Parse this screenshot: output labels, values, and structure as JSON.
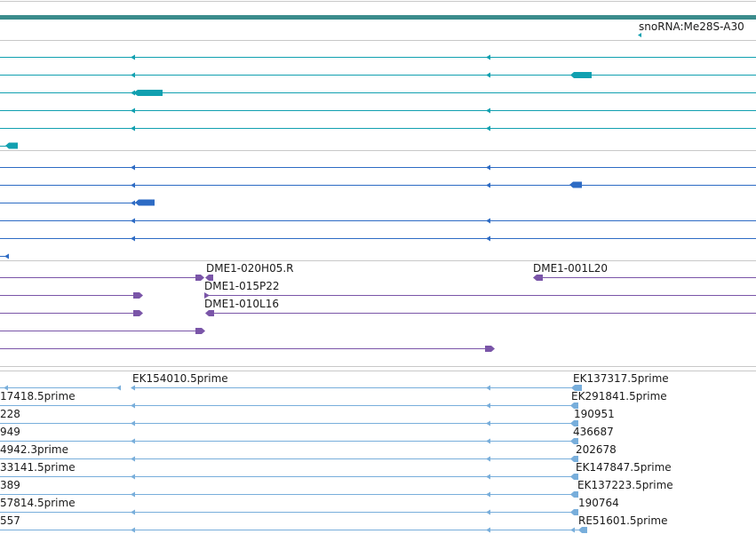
{
  "colors": {
    "top_bar": "#3b8c8c",
    "rna": "#11a0b0",
    "mrna": "#2d6bc4",
    "bac": "#7a55a8",
    "est": "#78aedb",
    "divider": "#c8c8c8",
    "text": "#1a1a1a"
  },
  "tracks": [
    {
      "name": "snoRNA",
      "features": [
        {
          "label": "snoRNA:Me28S-A30"
        }
      ]
    },
    {
      "name": "bac-ends",
      "features": [
        {
          "label": "DME1-020H05.R"
        },
        {
          "label": "DME1-001L20"
        },
        {
          "label": "DME1-015P22"
        },
        {
          "label": "DME1-010L16"
        }
      ]
    },
    {
      "name": "est-left",
      "features": [
        {
          "label": "17418.5prime"
        },
        {
          "label": "228"
        },
        {
          "label": "949"
        },
        {
          "label": "4942.3prime"
        },
        {
          "label": "33141.5prime"
        },
        {
          "label": "389"
        },
        {
          "label": "57814.5prime"
        },
        {
          "label": "557"
        },
        {
          "label": "EK154010.5prime"
        }
      ]
    },
    {
      "name": "est-right",
      "features": [
        {
          "label": "EK137317.5prime"
        },
        {
          "label": "EK291841.5prime"
        },
        {
          "label": "190951"
        },
        {
          "label": "436687"
        },
        {
          "label": "202678"
        },
        {
          "label": "EK147847.5prime"
        },
        {
          "label": "EK137223.5prime"
        },
        {
          "label": "190764"
        },
        {
          "label": "RE51601.5prime"
        }
      ]
    }
  ]
}
